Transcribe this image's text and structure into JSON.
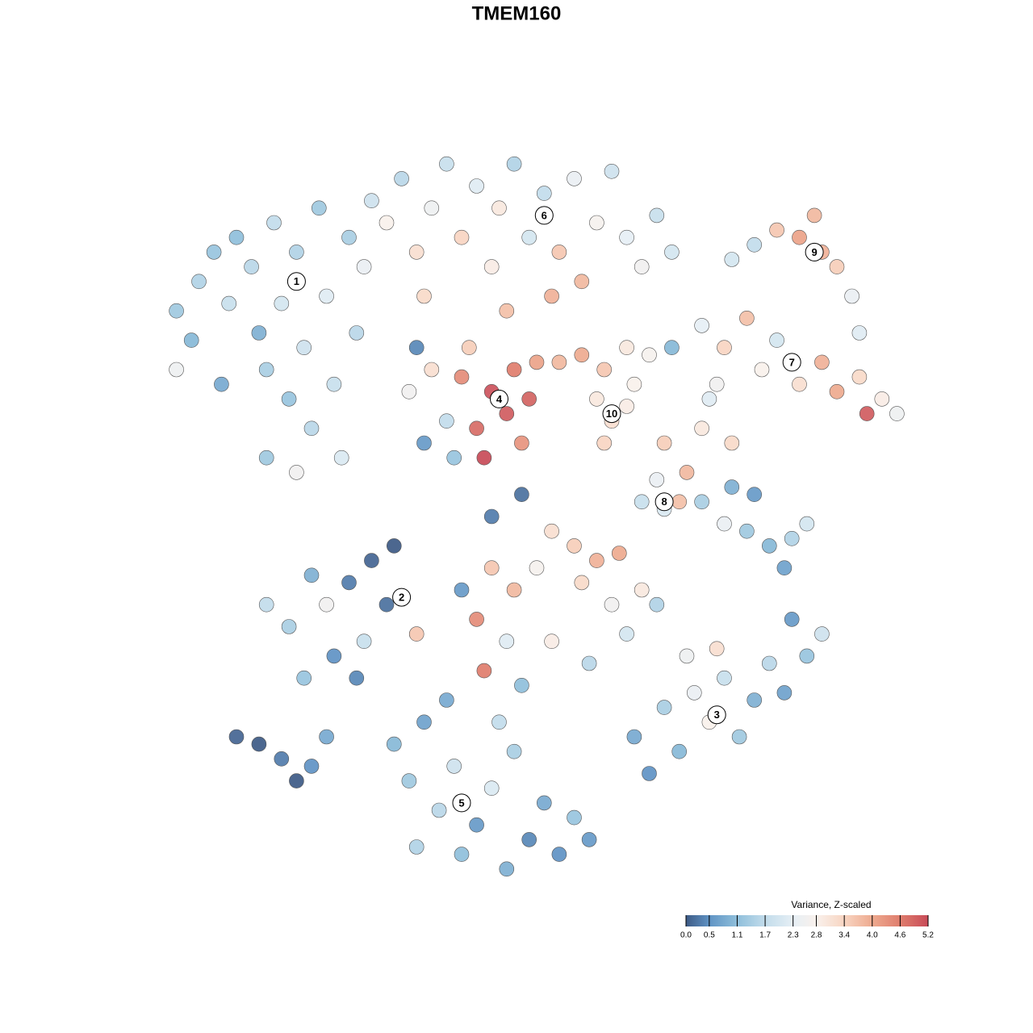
{
  "chart_data": {
    "type": "scatter",
    "title": "TMEM160",
    "xlim": [
      0,
      100
    ],
    "ylim": [
      0,
      100
    ],
    "x": [
      2,
      4,
      5,
      7,
      9,
      10,
      12,
      13,
      14,
      15,
      16,
      17,
      18,
      19,
      20,
      21,
      22,
      23,
      24,
      25,
      26,
      27,
      14,
      18,
      2,
      8,
      28,
      30,
      32,
      34,
      36,
      38,
      40,
      42,
      44,
      45,
      47,
      49,
      51,
      53,
      55,
      56,
      58,
      60,
      62,
      64,
      66,
      68,
      52,
      46,
      35,
      76,
      79,
      82,
      85,
      88,
      90,
      87,
      92,
      93,
      72,
      75,
      78,
      80,
      82,
      85,
      88,
      90,
      93,
      96,
      98,
      94,
      74,
      33,
      36,
      38,
      40,
      42,
      44,
      46,
      47,
      49,
      48,
      43,
      39,
      35,
      50,
      41,
      34,
      53,
      56,
      59,
      62,
      65,
      68,
      58,
      60,
      62,
      59,
      63,
      67,
      70,
      72,
      66,
      73,
      76,
      69,
      64,
      67,
      72,
      76,
      79,
      78,
      81,
      84,
      86,
      83,
      75,
      52,
      55,
      58,
      61,
      50,
      56,
      60,
      64,
      44,
      47,
      42,
      46,
      52,
      57,
      62,
      66,
      48,
      43,
      40,
      44,
      48,
      17,
      20,
      22,
      25,
      28,
      31,
      30,
      27,
      23,
      19,
      26,
      34,
      14,
      10,
      13,
      16,
      18,
      20,
      22,
      31,
      33,
      35,
      37,
      39,
      40,
      42,
      44,
      46,
      47,
      49,
      51,
      53,
      55,
      57,
      45,
      38,
      34,
      63,
      65,
      67,
      69,
      71,
      73,
      75,
      77,
      79,
      81,
      83,
      86,
      88,
      74,
      70,
      84
    ],
    "y": [
      78,
      74,
      82,
      86,
      79,
      88,
      84,
      75,
      70,
      90,
      79,
      66,
      86,
      73,
      62,
      92,
      80,
      68,
      58,
      88,
      75,
      84,
      58,
      56,
      70,
      68,
      93,
      90,
      96,
      86,
      92,
      98,
      88,
      95,
      84,
      92,
      98,
      88,
      94,
      86,
      96,
      82,
      90,
      97,
      88,
      84,
      91,
      86,
      80,
      78,
      80,
      85,
      87,
      89,
      88,
      86,
      84,
      91,
      80,
      75,
      76,
      73,
      77,
      70,
      74,
      68,
      71,
      67,
      69,
      66,
      64,
      64,
      68,
      67,
      70,
      63,
      69,
      62,
      67,
      64,
      70,
      66,
      60,
      58,
      58,
      60,
      71,
      73,
      73,
      71,
      72,
      70,
      73,
      72,
      73,
      66,
      63,
      65,
      60,
      68,
      60,
      56,
      62,
      55,
      66,
      60,
      52,
      52,
      51,
      52,
      54,
      53,
      48,
      46,
      47,
      49,
      43,
      49,
      48,
      46,
      44,
      45,
      43,
      41,
      38,
      40,
      43,
      40,
      36,
      33,
      33,
      30,
      34,
      38,
      27,
      29,
      40,
      50,
      53,
      35,
      42,
      38,
      41,
      44,
      46,
      38,
      33,
      31,
      28,
      28,
      34,
      38,
      20,
      19,
      17,
      14,
      16,
      20,
      19,
      14,
      22,
      10,
      16,
      4,
      8,
      13,
      2,
      18,
      6,
      11,
      4,
      9,
      6,
      22,
      25,
      5,
      20,
      15,
      24,
      18,
      26,
      22,
      28,
      20,
      25,
      30,
      26,
      31,
      34,
      32,
      31,
      36
    ],
    "values": [
      1.3,
      1.0,
      1.5,
      1.2,
      1.8,
      1.1,
      1.6,
      0.9,
      1.4,
      1.7,
      2.0,
      1.2,
      1.5,
      1.9,
      1.6,
      1.3,
      2.2,
      1.8,
      2.1,
      1.4,
      1.6,
      2.4,
      1.3,
      2.6,
      2.5,
      0.8,
      1.9,
      2.8,
      1.6,
      3.2,
      2.5,
      1.8,
      3.4,
      2.2,
      2.9,
      3.0,
      1.5,
      2.0,
      1.7,
      3.6,
      2.4,
      3.8,
      2.7,
      1.9,
      2.3,
      2.6,
      1.8,
      2.0,
      3.9,
      3.7,
      3.3,
      2.0,
      1.7,
      3.6,
      4.1,
      3.9,
      3.5,
      3.8,
      2.4,
      2.2,
      2.3,
      3.4,
      3.7,
      2.8,
      2.0,
      3.2,
      3.9,
      4.0,
      3.3,
      2.9,
      2.5,
      5.0,
      2.6,
      2.6,
      3.2,
      1.7,
      4.4,
      4.8,
      5.1,
      5.0,
      4.6,
      4.9,
      4.3,
      5.2,
      1.2,
      0.6,
      4.1,
      3.5,
      0.4,
      3.8,
      4.0,
      3.6,
      3.0,
      2.7,
      1.0,
      3.0,
      3.2,
      2.9,
      3.4,
      2.8,
      3.5,
      3.8,
      3.0,
      2.4,
      2.2,
      3.3,
      3.7,
      1.8,
      2.1,
      1.4,
      0.9,
      0.6,
      1.3,
      1.0,
      1.5,
      2.0,
      0.7,
      2.4,
      3.2,
      3.5,
      3.9,
      4.0,
      2.7,
      3.3,
      2.6,
      3.0,
      3.6,
      3.8,
      4.4,
      2.2,
      2.9,
      1.6,
      2.0,
      1.5,
      1.1,
      4.6,
      0.6,
      0.3,
      0.2,
      1.4,
      0.9,
      2.6,
      0.3,
      0.1,
      0.0,
      0.2,
      1.8,
      0.5,
      1.2,
      0.4,
      3.6,
      1.7,
      0.1,
      0.0,
      0.3,
      0.0,
      0.5,
      0.8,
      1.0,
      1.3,
      0.7,
      1.6,
      1.9,
      1.1,
      0.6,
      2.1,
      0.9,
      1.4,
      0.4,
      0.8,
      0.5,
      1.2,
      0.6,
      1.7,
      0.8,
      1.5,
      0.8,
      0.5,
      1.4,
      1.0,
      2.4,
      2.8,
      1.8,
      1.3,
      0.9,
      1.6,
      0.7,
      1.2,
      1.9,
      3.2,
      2.5,
      0.6
    ],
    "cluster_labels": [
      {
        "label": "1",
        "x": 18,
        "y": 82
      },
      {
        "label": "2",
        "x": 32,
        "y": 39
      },
      {
        "label": "3",
        "x": 74,
        "y": 23
      },
      {
        "label": "4",
        "x": 45,
        "y": 66
      },
      {
        "label": "5",
        "x": 40,
        "y": 11
      },
      {
        "label": "6",
        "x": 51,
        "y": 91
      },
      {
        "label": "7",
        "x": 84,
        "y": 71
      },
      {
        "label": "8",
        "x": 67,
        "y": 52
      },
      {
        "label": "9",
        "x": 87,
        "y": 86
      },
      {
        "label": "10",
        "x": 60,
        "y": 64
      }
    ],
    "colorbar": {
      "title": "Variance, Z-scaled",
      "colorscale": [
        [
          0,
          "#3d5a85"
        ],
        [
          0.5,
          "#5f93c4"
        ],
        [
          1.1,
          "#8fbfdb"
        ],
        [
          1.7,
          "#c2dceb"
        ],
        [
          2.3,
          "#e6eff5"
        ],
        [
          2.8,
          "#f9f1ec"
        ],
        [
          3.4,
          "#f8d5c2"
        ],
        [
          4.0,
          "#eeaa8f"
        ],
        [
          4.6,
          "#df7d6d"
        ],
        [
          5.2,
          "#c84b58"
        ]
      ],
      "ticks": [
        {
          "value": 0,
          "label": "0.0"
        },
        0.5,
        1.1,
        1.7,
        2.3,
        2.8,
        3.4,
        {
          "value": 4,
          "label": "4.0"
        },
        4.6,
        5.2
      ]
    }
  }
}
